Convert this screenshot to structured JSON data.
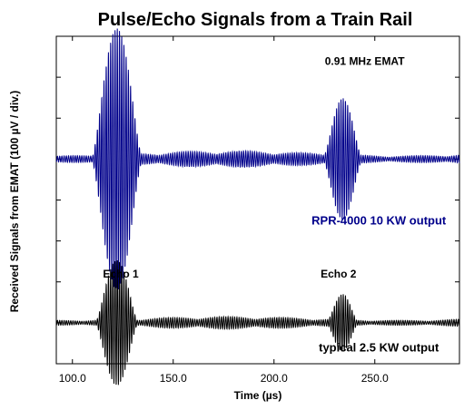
{
  "chart_data": {
    "type": "line",
    "title": "Pulse/Echo Signals from a Train Rail",
    "xlabel": "Time (µs)",
    "ylabel": "Received Signals from EMAT (100 µV / div.)",
    "xlim": [
      92,
      292
    ],
    "x_ticks": [
      100,
      150,
      200,
      250
    ],
    "x_tick_labels": [
      "100.0",
      "150.0",
      "200.0",
      "250.0"
    ],
    "grid": false,
    "series": [
      {
        "name": "RPR-4000 10 KW output",
        "color": "#00008b",
        "baseline_div": 5,
        "carrier_mhz": 0.91,
        "noise_amplitude_div": 0.2,
        "packets": [
          {
            "center_us": 122,
            "half_width_us": 12,
            "amplitude_div": 3.1
          },
          {
            "center_us": 234,
            "half_width_us": 9,
            "amplitude_div": 1.4
          }
        ]
      },
      {
        "name": "typical 2.5 KW output",
        "color": "#000000",
        "baseline_div": 1,
        "carrier_mhz": 0.91,
        "noise_amplitude_div": 0.15,
        "packets": [
          {
            "center_us": 122,
            "half_width_us": 10,
            "amplitude_div": 1.45
          },
          {
            "center_us": 234,
            "half_width_us": 7,
            "amplitude_div": 0.62
          }
        ]
      }
    ],
    "annotations": [
      {
        "text": "0.91 MHz EMAT",
        "x_us": 245,
        "y_div": 7.3,
        "color": "#000000"
      },
      {
        "text": "RPR-4000 10 KW output",
        "x_us": 252,
        "y_div": 3.4,
        "color": "#00008b"
      },
      {
        "text": "Echo 1",
        "x_us": 124,
        "y_div": 2.1,
        "color": "#000000"
      },
      {
        "text": "Echo 2",
        "x_us": 232,
        "y_div": 2.1,
        "color": "#000000"
      },
      {
        "text": "typical 2.5 KW output",
        "x_us": 252,
        "y_div": 0.3,
        "color": "#000000"
      }
    ]
  }
}
